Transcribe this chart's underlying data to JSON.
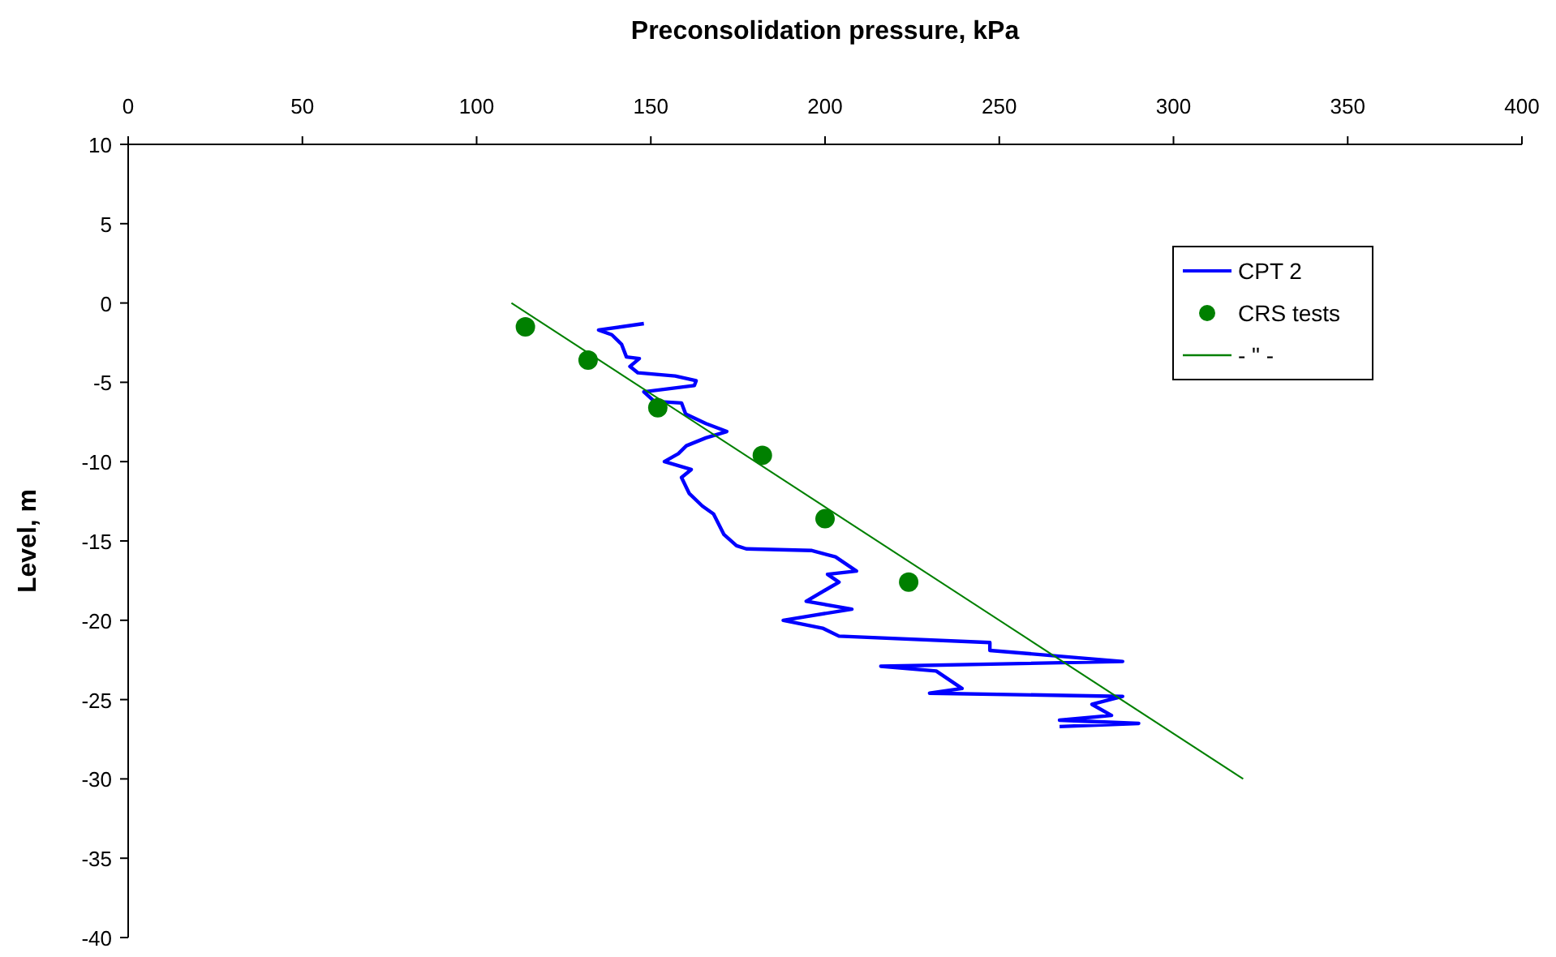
{
  "chart_data": {
    "type": "line",
    "xlabel": "Preconsolidation pressure, kPa",
    "ylabel": "Level, m",
    "xlim": [
      0,
      400
    ],
    "xticks": [
      0,
      50,
      100,
      150,
      200,
      250,
      300,
      350,
      400
    ],
    "ylim": [
      -40,
      10
    ],
    "yticks": [
      10,
      5,
      0,
      -5,
      -10,
      -15,
      -20,
      -25,
      -30,
      -35,
      -40
    ],
    "grid": false,
    "legend": "top right",
    "series": [
      {
        "name": "CPT 2",
        "color": "#0000ff",
        "marker": "none",
        "x": [
          148,
          135,
          138.8,
          141.6,
          143,
          146.7,
          144,
          146.3,
          157,
          163,
          162.5,
          148,
          151,
          158.8,
          160,
          165.8,
          171.8,
          165.8,
          160.2,
          157.9,
          153.9,
          161.6,
          158.8,
          161,
          164.8,
          168,
          171,
          174.6,
          177.4,
          196,
          203,
          209,
          200.7,
          204,
          201.6,
          194.6,
          207.7,
          188,
          199.3,
          204,
          247.3,
          247.3,
          285.4,
          216,
          231.9,
          239.3,
          230,
          285.4,
          276.6,
          282.2,
          267.3,
          290,
          267.3
        ],
        "values": [
          -1.3,
          -1.7,
          -2.0,
          -2.6,
          -3.4,
          -3.5,
          -4.0,
          -4.4,
          -4.6,
          -4.9,
          -5.2,
          -5.6,
          -6.2,
          -6.3,
          -7.0,
          -7.6,
          -8.1,
          -8.5,
          -9.0,
          -9.5,
          -10.0,
          -10.5,
          -11.0,
          -12.0,
          -12.8,
          -13.3,
          -14.6,
          -15.3,
          -15.5,
          -15.6,
          -16.0,
          -16.9,
          -17.1,
          -17.6,
          -17.9,
          -18.8,
          -19.3,
          -20.0,
          -20.5,
          -21.0,
          -21.4,
          -21.9,
          -22.6,
          -22.9,
          -23.2,
          -24.3,
          -24.6,
          -24.8,
          -25.3,
          -26.0,
          -26.3,
          -26.5,
          -26.7
        ]
      },
      {
        "name": "CRS tests",
        "type": "scatter",
        "color": "#008000",
        "marker": "circle",
        "x": [
          114,
          132,
          152,
          182,
          200,
          224
        ],
        "values": [
          -1.5,
          -3.6,
          -6.6,
          -9.6,
          -13.6,
          -17.6
        ]
      },
      {
        "name": "- \" -",
        "color": "#008000",
        "marker": "none",
        "x": [
          110,
          320
        ],
        "values": [
          0,
          -30
        ]
      }
    ]
  }
}
